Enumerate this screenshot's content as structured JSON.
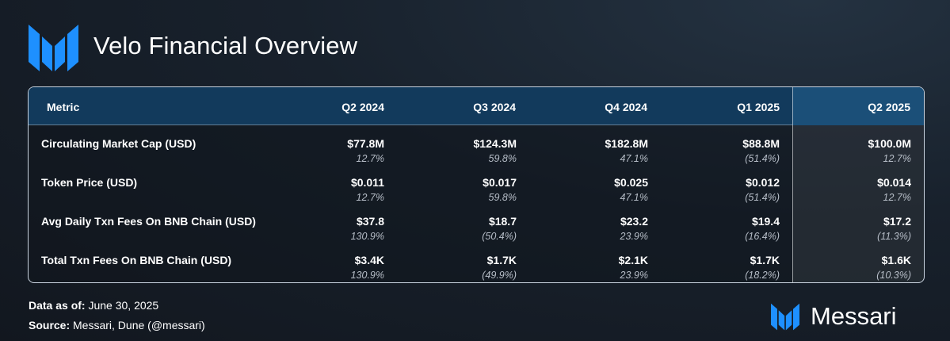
{
  "header": {
    "title": "Velo Financial Overview",
    "logo_icon": "messari-logo-icon"
  },
  "chart_data": {
    "type": "table",
    "columns": [
      "Metric",
      "Q2 2024",
      "Q3 2024",
      "Q4 2024",
      "Q1 2025",
      "Q2 2025"
    ],
    "highlight_column": "Q2 2025",
    "rows": [
      {
        "metric": "Circulating Market Cap (USD)",
        "values": [
          "$77.8M",
          "$124.3M",
          "$182.8M",
          "$88.8M",
          "$100.0M"
        ],
        "changes": [
          "12.7%",
          "59.8%",
          "47.1%",
          "(51.4%)",
          "12.7%"
        ]
      },
      {
        "metric": "Token Price (USD)",
        "values": [
          "$0.011",
          "$0.017",
          "$0.025",
          "$0.012",
          "$0.014"
        ],
        "changes": [
          "12.7%",
          "59.8%",
          "47.1%",
          "(51.4%)",
          "12.7%"
        ]
      },
      {
        "metric": "Avg Daily Txn Fees On BNB Chain (USD)",
        "values": [
          "$37.8",
          "$18.7",
          "$23.2",
          "$19.4",
          "$17.2"
        ],
        "changes": [
          "130.9%",
          "(50.4%)",
          "23.9%",
          "(16.4%)",
          "(11.3%)"
        ]
      },
      {
        "metric": "Total Txn Fees On BNB Chain (USD)",
        "values": [
          "$3.4K",
          "$1.7K",
          "$2.1K",
          "$1.7K",
          "$1.6K"
        ],
        "changes": [
          "130.9%",
          "(49.9%)",
          "23.9%",
          "(18.2%)",
          "(10.3%)"
        ]
      }
    ]
  },
  "footer": {
    "data_as_of_label": "Data as of:",
    "data_as_of_value": "June 30, 2025",
    "source_label": "Source:",
    "source_value": "Messari, Dune (@messari)"
  },
  "brand": {
    "name": "Messari",
    "icon": "messari-logo-icon"
  },
  "colors": {
    "accent_blue": "#1e90ff",
    "header_bg": "#123a5c",
    "highlight_header_bg": "#1b4f78",
    "change_text": "#b7bec8"
  }
}
